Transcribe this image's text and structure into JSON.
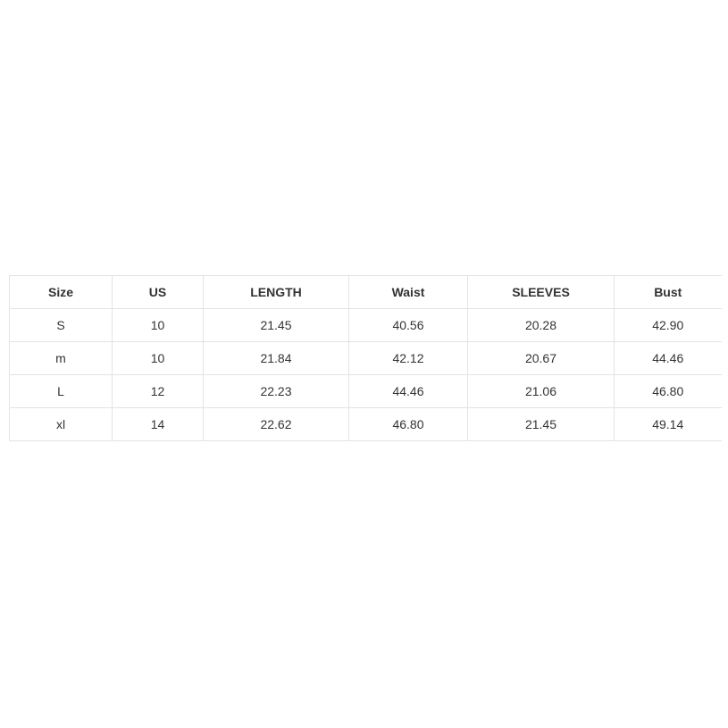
{
  "size_chart": {
    "headers": [
      "Size",
      "US",
      "LENGTH",
      "Waist",
      "SLEEVES",
      "Bust"
    ],
    "rows": [
      [
        "S",
        "10",
        "21.45",
        "40.56",
        "20.28",
        "42.90"
      ],
      [
        "m",
        "10",
        "21.84",
        "42.12",
        "20.67",
        "44.46"
      ],
      [
        "L",
        "12",
        "22.23",
        "44.46",
        "21.06",
        "46.80"
      ],
      [
        "xl",
        "14",
        "22.62",
        "46.80",
        "21.45",
        "49.14"
      ]
    ],
    "colors": {
      "border": "#e3e3e3",
      "text": "#333333",
      "background": "#ffffff"
    }
  }
}
